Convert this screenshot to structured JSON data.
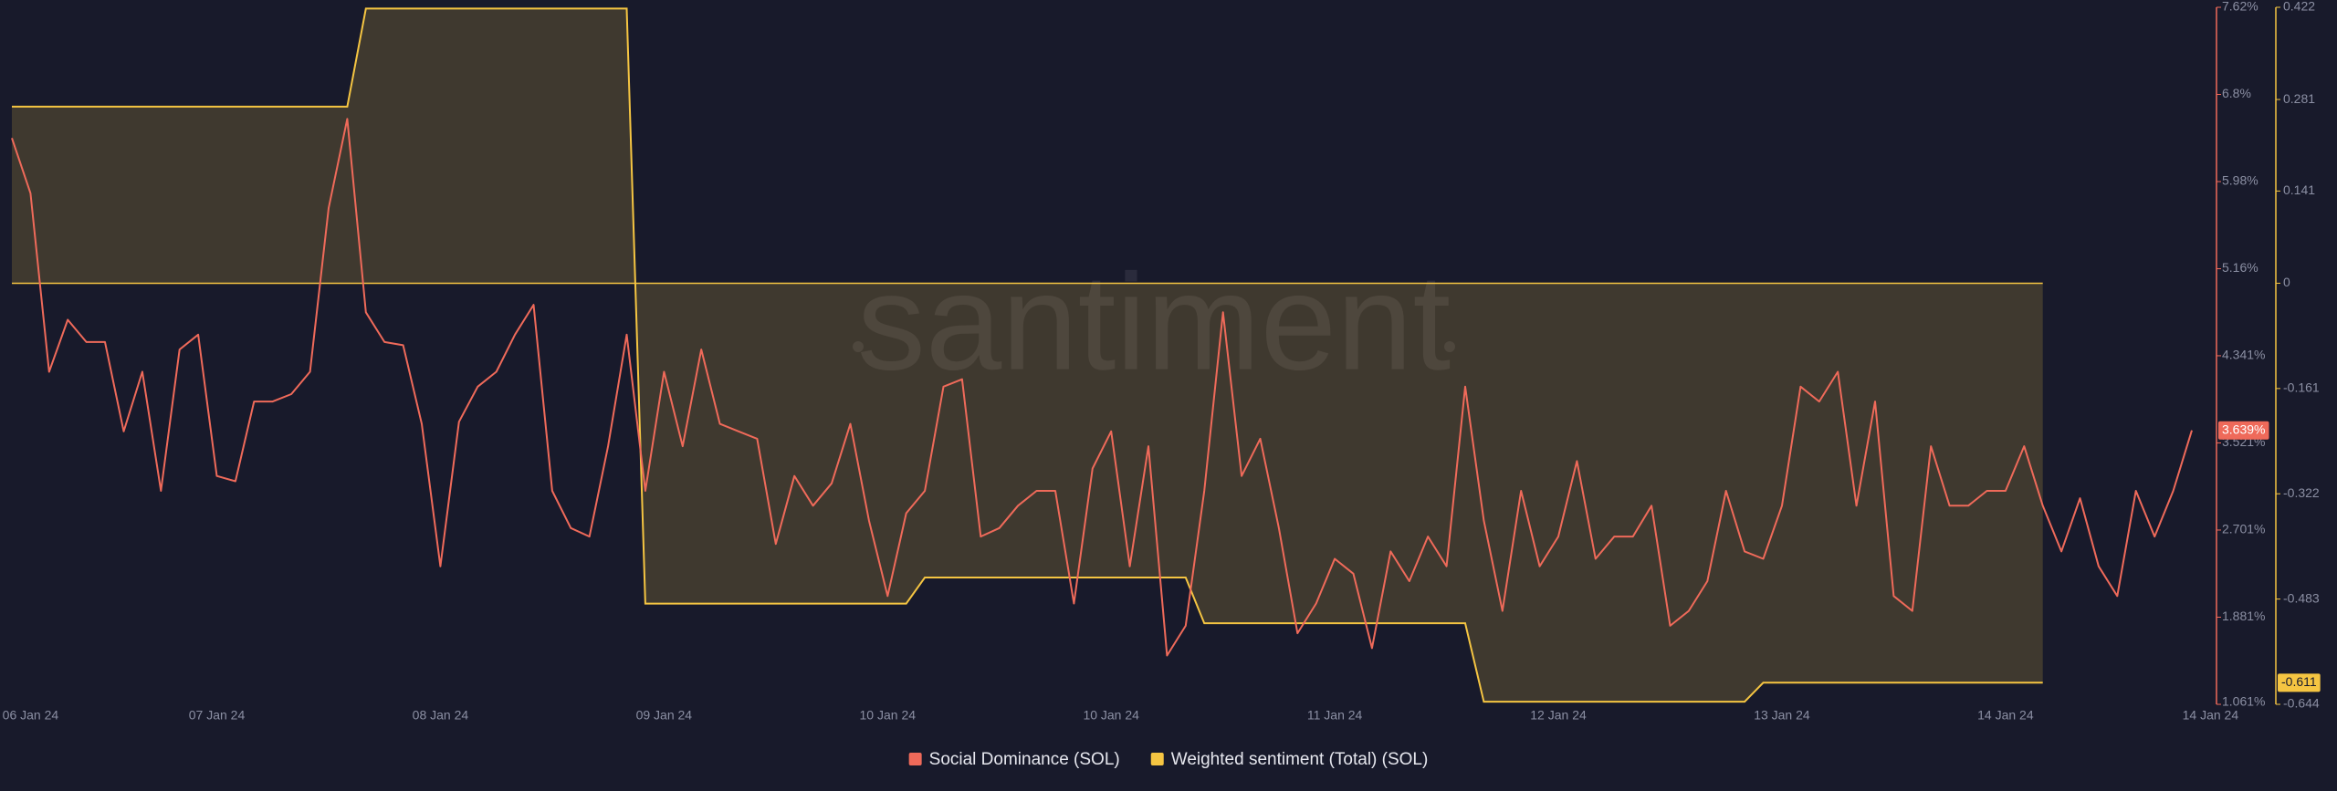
{
  "chart_data": {
    "type": "line",
    "watermark": "santiment",
    "categories": [
      null,
      "06 Jan 24",
      null,
      null,
      null,
      null,
      null,
      null,
      null,
      null,
      null,
      "07 Jan 24",
      null,
      null,
      null,
      null,
      null,
      null,
      null,
      null,
      null,
      null,
      null,
      "08 Jan 24",
      null,
      null,
      null,
      null,
      null,
      null,
      null,
      null,
      null,
      null,
      null,
      "09 Jan 24",
      null,
      null,
      null,
      null,
      null,
      null,
      null,
      null,
      null,
      null,
      null,
      "10 Jan 24",
      null,
      null,
      null,
      null,
      null,
      null,
      null,
      null,
      null,
      null,
      null,
      "10 Jan 24",
      null,
      null,
      null,
      null,
      null,
      null,
      null,
      null,
      null,
      null,
      null,
      "11 Jan 24",
      null,
      null,
      null,
      null,
      null,
      null,
      null,
      null,
      null,
      null,
      null,
      "12 Jan 24",
      null,
      null,
      null,
      null,
      null,
      null,
      null,
      null,
      null,
      null,
      null,
      "13 Jan 24",
      null,
      null,
      null,
      null,
      null,
      null,
      null,
      null,
      null,
      null,
      null,
      "14 Jan 24",
      null,
      null,
      null,
      null,
      null,
      null,
      null,
      null,
      null,
      null,
      "14 Jan 24"
    ],
    "ylim": [
      1.061,
      7.62
    ],
    "yticks": [
      {
        "value": 1.061,
        "label": "1.061%"
      },
      {
        "value": 1.881,
        "label": "1.881%"
      },
      {
        "value": 2.701,
        "label": "2.701%"
      },
      {
        "value": 3.521,
        "label": "3.521%"
      },
      {
        "value": 4.341,
        "label": "4.341%"
      },
      {
        "value": 5.16,
        "label": "5.16%"
      },
      {
        "value": 5.98,
        "label": "5.98%"
      },
      {
        "value": 6.8,
        "label": "6.8%"
      },
      {
        "value": 7.62,
        "label": "7.62%"
      }
    ],
    "y2lim": [
      -0.644,
      0.422
    ],
    "y2ticks": [
      -0.644,
      -0.483,
      -0.322,
      -0.161,
      0,
      0.141,
      0.281,
      0.422
    ],
    "grid": false,
    "legend": "bottom",
    "series": [
      {
        "name": "Social Dominance (SOL)",
        "color": "#ef6a5a",
        "last_value_label": "3.639%",
        "values": [
          6.39,
          5.87,
          4.19,
          4.68,
          4.47,
          4.47,
          3.63,
          4.19,
          3.07,
          4.4,
          4.54,
          3.21,
          3.16,
          3.91,
          3.91,
          3.98,
          4.19,
          5.73,
          6.57,
          4.75,
          4.47,
          4.44,
          3.7,
          2.36,
          3.72,
          4.05,
          4.19,
          4.54,
          4.82,
          3.07,
          2.72,
          2.64,
          3.49,
          4.54,
          3.07,
          4.19,
          3.49,
          4.4,
          3.7,
          3.63,
          3.56,
          2.57,
          3.21,
          2.93,
          3.14,
          3.7,
          2.79,
          2.08,
          2.86,
          3.07,
          4.05,
          4.12,
          2.64,
          2.72,
          2.93,
          3.07,
          3.07,
          2.01,
          3.28,
          3.63,
          2.36,
          3.49,
          1.52,
          1.8,
          3.07,
          4.75,
          3.21,
          3.56,
          2.72,
          1.73,
          2.01,
          2.43,
          2.29,
          1.59,
          2.5,
          2.22,
          2.64,
          2.36,
          4.05,
          2.79,
          1.94,
          3.07,
          2.36,
          2.64,
          3.35,
          2.43,
          2.64,
          2.64,
          2.93,
          1.8,
          1.94,
          2.22,
          3.07,
          2.5,
          2.43,
          2.93,
          4.05,
          3.91,
          4.19,
          2.93,
          3.91,
          2.08,
          1.94,
          3.49,
          2.93,
          2.93,
          3.07,
          3.07,
          3.49,
          2.93,
          2.5,
          3.0,
          2.36,
          2.08,
          3.07,
          2.64,
          3.07,
          3.639,
          null
        ]
      },
      {
        "name": "Weighted sentiment (Total) (SOL)",
        "color": "#f5c542",
        "axis": "y2",
        "type": "area",
        "last_value_label": "-0.611",
        "values": [
          0.27,
          0.27,
          0.27,
          0.27,
          0.27,
          0.27,
          0.27,
          0.27,
          0.27,
          0.27,
          0.27,
          0.27,
          0.27,
          0.27,
          0.27,
          0.27,
          0.27,
          0.27,
          0.27,
          0.42,
          0.42,
          0.42,
          0.42,
          0.42,
          0.42,
          0.42,
          0.42,
          0.42,
          0.42,
          0.42,
          0.42,
          0.42,
          0.42,
          0.42,
          -0.49,
          -0.49,
          -0.49,
          -0.49,
          -0.49,
          -0.49,
          -0.49,
          -0.49,
          -0.49,
          -0.49,
          -0.49,
          -0.49,
          -0.49,
          -0.49,
          -0.49,
          -0.45,
          -0.45,
          -0.45,
          -0.45,
          -0.45,
          -0.45,
          -0.45,
          -0.45,
          -0.45,
          -0.45,
          -0.45,
          -0.45,
          -0.45,
          -0.45,
          -0.45,
          -0.52,
          -0.52,
          -0.52,
          -0.52,
          -0.52,
          -0.52,
          -0.52,
          -0.52,
          -0.52,
          -0.52,
          -0.52,
          -0.52,
          -0.52,
          -0.52,
          -0.52,
          -0.64,
          -0.64,
          -0.64,
          -0.64,
          -0.64,
          -0.64,
          -0.64,
          -0.64,
          -0.64,
          -0.64,
          -0.64,
          -0.64,
          -0.64,
          -0.64,
          -0.64,
          -0.611,
          -0.611,
          -0.611,
          -0.611,
          -0.611,
          -0.611,
          -0.611,
          -0.611,
          -0.611,
          -0.611,
          -0.611,
          -0.611,
          -0.611,
          -0.611,
          -0.611,
          -0.611,
          null,
          null,
          null,
          null,
          null,
          null,
          null,
          null,
          null
        ]
      }
    ]
  }
}
